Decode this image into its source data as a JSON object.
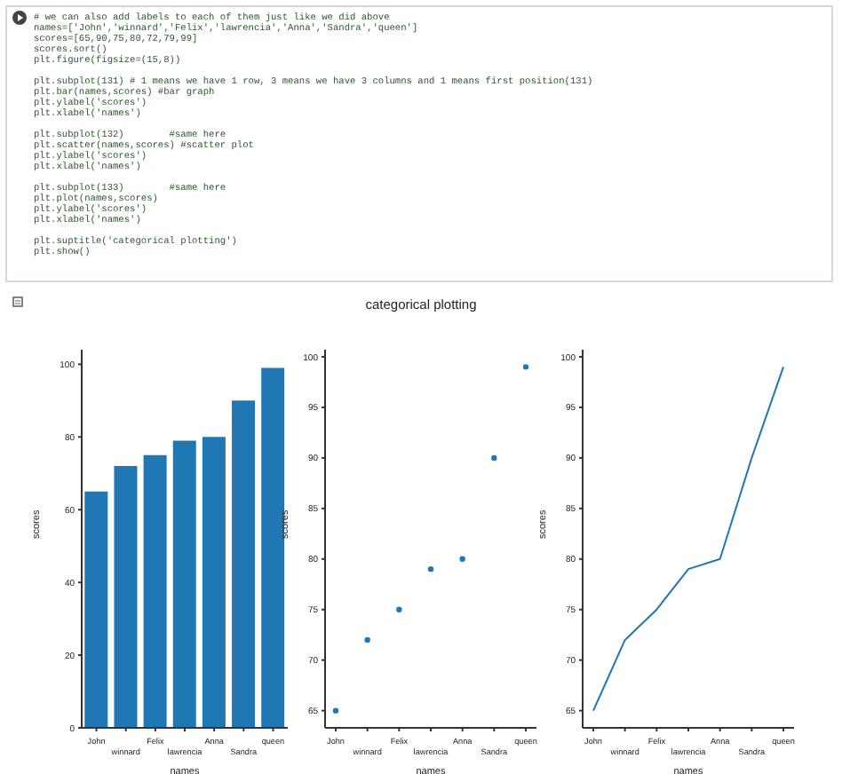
{
  "chart_data": [
    {
      "type": "other",
      "title": "categorical plotting",
      "annotations": [
        "# we can also add labels to each of them just like we did above\nnames=['John','winnard','Felix','lawrencia','Anna','Sandra','queen']\nscores=[65,90,75,80,72,79,99]\nscores.sort()\nplt.figure(figsize=(15,8))",
        "plt.subplot(131) # 1 means we have 1 row, 3 means we have 3 columns and 1 means first position(131)\nplt.bar(names,scores) #bar graph\nplt.ylabel('scores')\nplt.xlabel('names')",
        "plt.subplot(132)        #same here\nplt.scatter(names,scores) #scatter plot\nplt.ylabel('scores')\nplt.xlabel('names')",
        "plt.subplot(133)        #same here\nplt.plot(names,scores)\nplt.ylabel('scores')\nplt.xlabel('names')",
        "plt.suptitle('categorical plotting')\nplt.show()"
      ]
    },
    {
      "type": "bar",
      "xlabel": "names",
      "ylabel": "scores",
      "categories": [
        "John",
        "winnard",
        "Felix",
        "lawrencia",
        "Anna",
        "Sandra",
        "queen"
      ],
      "values": [
        65,
        72,
        75,
        79,
        80,
        90,
        99
      ],
      "color": "#1f77b4",
      "ylim": [
        0,
        104
      ],
      "yticks": [
        0,
        20,
        40,
        60,
        80,
        100
      ]
    },
    {
      "type": "scatter",
      "xlabel": "names",
      "ylabel": "scores",
      "categories": [
        "John",
        "winnard",
        "Felix",
        "lawrencia",
        "Anna",
        "Sandra",
        "queen"
      ],
      "values": [
        65,
        72,
        75,
        79,
        80,
        90,
        99
      ],
      "color": "#1f77b4",
      "marker": "circle",
      "ylim": [
        63.3,
        100.7
      ],
      "yticks": [
        65,
        70,
        75,
        80,
        85,
        90,
        95,
        100
      ]
    },
    {
      "type": "line",
      "xlabel": "names",
      "ylabel": "scores",
      "categories": [
        "John",
        "winnard",
        "Felix",
        "lawrencia",
        "Anna",
        "Sandra",
        "queen"
      ],
      "values": [
        65,
        72,
        75,
        79,
        80,
        90,
        99
      ],
      "color": "#1f77b4",
      "line_style": "solid",
      "ylim": [
        63.3,
        100.7
      ],
      "yticks": [
        65,
        70,
        75,
        80,
        85,
        90,
        95,
        100
      ]
    }
  ]
}
